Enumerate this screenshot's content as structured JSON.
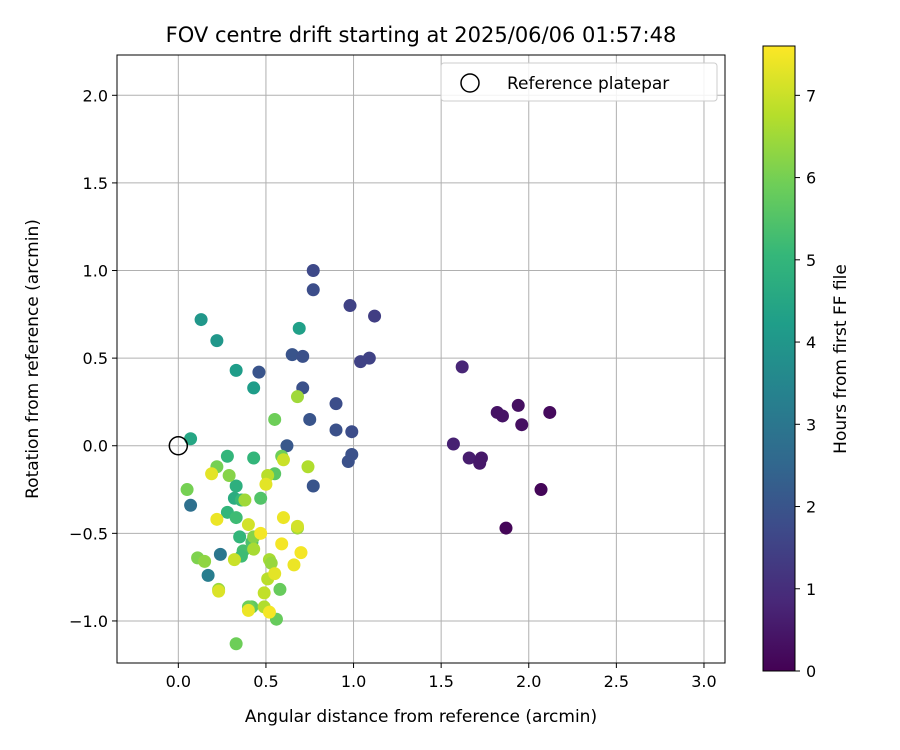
{
  "chart_data": {
    "type": "scatter",
    "title": "FOV centre drift starting at 2025/06/06 01:57:48",
    "xlabel": "Angular distance from reference (arcmin)",
    "ylabel": "Rotation from reference (arcmin)",
    "xlim": [
      -0.35,
      3.12
    ],
    "ylim": [
      -1.24,
      2.23
    ],
    "xticks": [
      0.0,
      0.5,
      1.0,
      1.5,
      2.0,
      2.5,
      3.0
    ],
    "xtick_labels": [
      "0.0",
      "0.5",
      "1.0",
      "1.5",
      "2.0",
      "2.5",
      "3.0"
    ],
    "yticks": [
      -1.0,
      -0.5,
      0.0,
      0.5,
      1.0,
      1.5,
      2.0
    ],
    "ytick_labels": [
      "−1.0",
      "−0.5",
      "0.0",
      "0.5",
      "1.0",
      "1.5",
      "2.0"
    ],
    "grid": true,
    "legend": {
      "placement": "top-right",
      "entries": [
        "Reference platepar"
      ]
    },
    "reference_point": {
      "x": 0.0,
      "y": 0.0
    },
    "colormap": "viridis",
    "colorbar": {
      "label": "Hours from first FF file",
      "range": [
        0,
        7.6
      ],
      "ticks": [
        0,
        1,
        2,
        3,
        4,
        5,
        6,
        7
      ],
      "tick_labels": [
        "0",
        "1",
        "2",
        "3",
        "4",
        "5",
        "6",
        "7"
      ],
      "stops": [
        "#440154",
        "#482878",
        "#3e4989",
        "#31688e",
        "#26828e",
        "#1f9e89",
        "#35b779",
        "#6ece58",
        "#b5de2b",
        "#fde725"
      ]
    },
    "points": [
      {
        "x": 1.62,
        "y": 0.45,
        "c": 0.8
      },
      {
        "x": 1.57,
        "y": 0.01,
        "c": 0.7
      },
      {
        "x": 1.66,
        "y": -0.07,
        "c": 0.6
      },
      {
        "x": 1.73,
        "y": -0.07,
        "c": 0.5
      },
      {
        "x": 1.72,
        "y": -0.1,
        "c": 0.5
      },
      {
        "x": 1.82,
        "y": 0.19,
        "c": 0.4
      },
      {
        "x": 1.85,
        "y": 0.17,
        "c": 0.4
      },
      {
        "x": 1.94,
        "y": 0.23,
        "c": 0.3
      },
      {
        "x": 1.96,
        "y": 0.12,
        "c": 0.3
      },
      {
        "x": 2.12,
        "y": 0.19,
        "c": 0.2
      },
      {
        "x": 2.07,
        "y": -0.25,
        "c": 0.1
      },
      {
        "x": 1.87,
        "y": -0.47,
        "c": 0.1
      },
      {
        "x": 0.77,
        "y": 1.0,
        "c": 1.7
      },
      {
        "x": 0.77,
        "y": 0.89,
        "c": 1.8
      },
      {
        "x": 0.98,
        "y": 0.8,
        "c": 1.5
      },
      {
        "x": 1.12,
        "y": 0.74,
        "c": 1.4
      },
      {
        "x": 0.65,
        "y": 0.52,
        "c": 2.0
      },
      {
        "x": 0.71,
        "y": 0.51,
        "c": 1.9
      },
      {
        "x": 1.04,
        "y": 0.48,
        "c": 1.5
      },
      {
        "x": 1.09,
        "y": 0.5,
        "c": 1.5
      },
      {
        "x": 0.46,
        "y": 0.42,
        "c": 2.0
      },
      {
        "x": 0.71,
        "y": 0.33,
        "c": 1.9
      },
      {
        "x": 0.9,
        "y": 0.24,
        "c": 1.8
      },
      {
        "x": 0.75,
        "y": 0.15,
        "c": 2.0
      },
      {
        "x": 0.9,
        "y": 0.09,
        "c": 1.9
      },
      {
        "x": 0.99,
        "y": 0.08,
        "c": 1.8
      },
      {
        "x": 0.62,
        "y": 0.0,
        "c": 2.1
      },
      {
        "x": 0.99,
        "y": -0.05,
        "c": 1.9
      },
      {
        "x": 0.97,
        "y": -0.09,
        "c": 1.9
      },
      {
        "x": 0.77,
        "y": -0.23,
        "c": 2.0
      },
      {
        "x": 0.13,
        "y": 0.72,
        "c": 4.0
      },
      {
        "x": 0.22,
        "y": 0.6,
        "c": 4.0
      },
      {
        "x": 0.33,
        "y": 0.43,
        "c": 4.2
      },
      {
        "x": 0.43,
        "y": 0.33,
        "c": 4.2
      },
      {
        "x": 0.69,
        "y": 0.67,
        "c": 4.3
      },
      {
        "x": 0.07,
        "y": 0.04,
        "c": 4.5
      },
      {
        "x": 0.07,
        "y": -0.34,
        "c": 2.8
      },
      {
        "x": 0.24,
        "y": -0.62,
        "c": 3.0
      },
      {
        "x": 0.17,
        "y": -0.74,
        "c": 3.2
      },
      {
        "x": 0.43,
        "y": -0.07,
        "c": 5.0
      },
      {
        "x": 0.28,
        "y": -0.06,
        "c": 5.0
      },
      {
        "x": 0.33,
        "y": -0.23,
        "c": 4.8
      },
      {
        "x": 0.32,
        "y": -0.3,
        "c": 4.7
      },
      {
        "x": 0.36,
        "y": -0.31,
        "c": 5.1
      },
      {
        "x": 0.28,
        "y": -0.38,
        "c": 5.0
      },
      {
        "x": 0.33,
        "y": -0.41,
        "c": 5.2
      },
      {
        "x": 0.35,
        "y": -0.52,
        "c": 5.0
      },
      {
        "x": 0.37,
        "y": -0.6,
        "c": 5.3
      },
      {
        "x": 0.36,
        "y": -0.63,
        "c": 5.2
      },
      {
        "x": 0.42,
        "y": -0.55,
        "c": 5.4
      },
      {
        "x": 0.47,
        "y": -0.3,
        "c": 5.5
      },
      {
        "x": 0.55,
        "y": -0.16,
        "c": 5.6
      },
      {
        "x": 0.58,
        "y": -0.82,
        "c": 5.8
      },
      {
        "x": 0.56,
        "y": -0.99,
        "c": 5.8
      },
      {
        "x": 0.42,
        "y": -0.92,
        "c": 5.7
      },
      {
        "x": 0.4,
        "y": -0.92,
        "c": 5.9
      },
      {
        "x": 0.33,
        "y": -1.13,
        "c": 5.9
      },
      {
        "x": 0.55,
        "y": 0.15,
        "c": 5.9
      },
      {
        "x": 0.59,
        "y": -0.06,
        "c": 5.9
      },
      {
        "x": 0.05,
        "y": -0.25,
        "c": 6.0
      },
      {
        "x": 0.11,
        "y": -0.64,
        "c": 6.1
      },
      {
        "x": 0.15,
        "y": -0.66,
        "c": 6.3
      },
      {
        "x": 0.22,
        "y": -0.12,
        "c": 6.0
      },
      {
        "x": 0.29,
        "y": -0.17,
        "c": 6.2
      },
      {
        "x": 0.23,
        "y": -0.82,
        "c": 6.4
      },
      {
        "x": 0.38,
        "y": -0.31,
        "c": 6.5
      },
      {
        "x": 0.43,
        "y": -0.52,
        "c": 6.2
      },
      {
        "x": 0.43,
        "y": -0.59,
        "c": 6.6
      },
      {
        "x": 0.52,
        "y": -0.65,
        "c": 6.6
      },
      {
        "x": 0.53,
        "y": -0.67,
        "c": 6.4
      },
      {
        "x": 0.51,
        "y": -0.76,
        "c": 6.8
      },
      {
        "x": 0.49,
        "y": -0.84,
        "c": 6.9
      },
      {
        "x": 0.49,
        "y": -0.92,
        "c": 6.7
      },
      {
        "x": 0.68,
        "y": 0.28,
        "c": 6.5
      },
      {
        "x": 0.74,
        "y": -0.12,
        "c": 6.7
      },
      {
        "x": 0.68,
        "y": -0.47,
        "c": 6.5
      },
      {
        "x": 0.51,
        "y": -0.17,
        "c": 6.8
      },
      {
        "x": 0.6,
        "y": -0.08,
        "c": 7.0
      },
      {
        "x": 0.19,
        "y": -0.16,
        "c": 7.3
      },
      {
        "x": 0.22,
        "y": -0.42,
        "c": 7.4
      },
      {
        "x": 0.23,
        "y": -0.83,
        "c": 7.2
      },
      {
        "x": 0.32,
        "y": -0.65,
        "c": 7.0
      },
      {
        "x": 0.4,
        "y": -0.45,
        "c": 7.1
      },
      {
        "x": 0.4,
        "y": -0.94,
        "c": 7.4
      },
      {
        "x": 0.47,
        "y": -0.5,
        "c": 7.5
      },
      {
        "x": 0.5,
        "y": -0.22,
        "c": 7.3
      },
      {
        "x": 0.52,
        "y": -0.95,
        "c": 7.5
      },
      {
        "x": 0.55,
        "y": -0.73,
        "c": 7.3
      },
      {
        "x": 0.59,
        "y": -0.56,
        "c": 7.5
      },
      {
        "x": 0.6,
        "y": -0.41,
        "c": 7.4
      },
      {
        "x": 0.66,
        "y": -0.68,
        "c": 7.4
      },
      {
        "x": 0.68,
        "y": -0.46,
        "c": 7.1
      },
      {
        "x": 0.7,
        "y": -0.61,
        "c": 7.5
      }
    ]
  }
}
